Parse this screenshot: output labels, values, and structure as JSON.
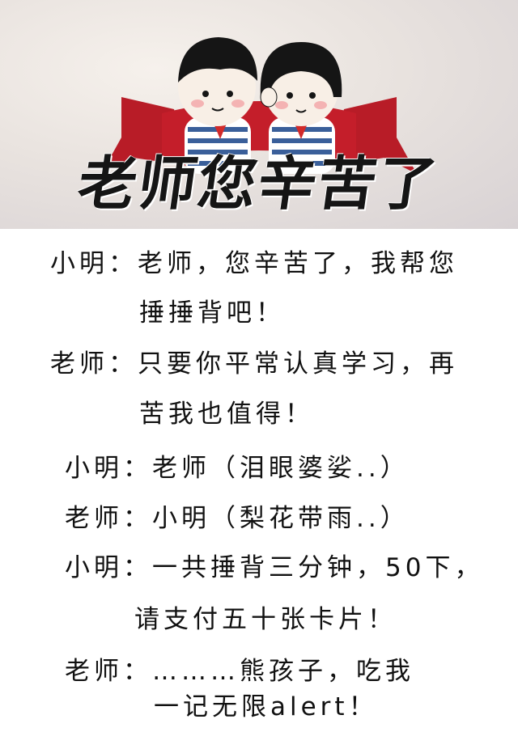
{
  "banner": {
    "title": "老师您辛苦了"
  },
  "dialogue": {
    "line1": "小明：老师，您辛苦了，我帮您",
    "line2": "捶捶背吧！",
    "line3": "老师：只要你平常认真学习，再",
    "line4": "苦我也值得！",
    "line5": "小明：老师（泪眼婆娑..）",
    "line6": "老师：小明（梨花带雨..）",
    "line7": "小明：一共捶背三分钟，50下，",
    "line8": "请支付五十张卡片！",
    "line9": "老师：………熊孩子，吃我",
    "line10": "一记无限alert！"
  },
  "colors": {
    "ribbon": "#c41e2a",
    "hair": "#151515",
    "shirt_stripe": "#3a5f9a"
  }
}
